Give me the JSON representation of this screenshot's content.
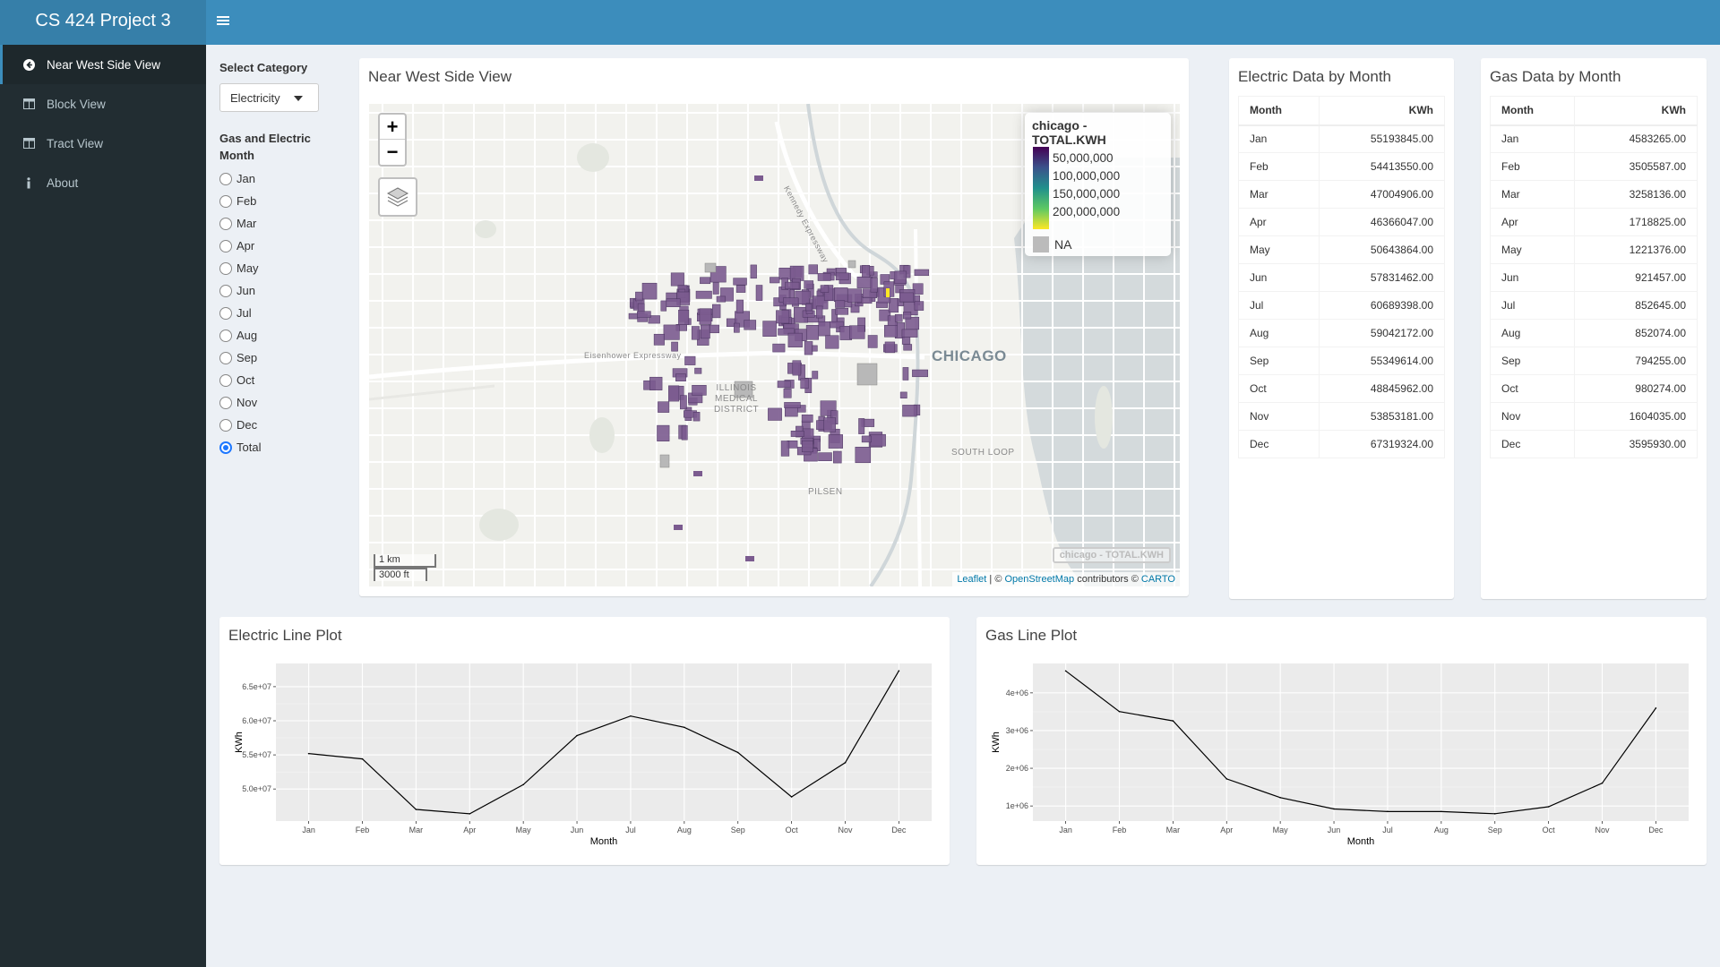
{
  "app": {
    "title": "CS 424 Project 3",
    "menu_icon": "hamburger-icon"
  },
  "sidebar": {
    "items": [
      {
        "label": "Near West Side View",
        "icon": "arrow-circle-left-icon",
        "active": true
      },
      {
        "label": "Block View",
        "icon": "table-icon",
        "active": false
      },
      {
        "label": "Tract View",
        "icon": "table-icon",
        "active": false
      },
      {
        "label": "About",
        "icon": "info-icon",
        "active": false
      }
    ]
  },
  "controls": {
    "category_label": "Select Category",
    "category_value": "Electricity",
    "month_label": "Gas and Electric Month",
    "months": [
      "Jan",
      "Feb",
      "Mar",
      "Apr",
      "May",
      "Jun",
      "Jul",
      "Aug",
      "Sep",
      "Oct",
      "Nov",
      "Dec",
      "Total"
    ],
    "selected_month": "Total"
  },
  "map_box": {
    "title": "Near West Side View",
    "zoom_in": "+",
    "zoom_out": "−",
    "legend": {
      "title": "chicago - TOTAL.KWH",
      "labels": [
        "50,000,000",
        "100,000,000",
        "150,000,000",
        "200,000,000"
      ],
      "na": "NA",
      "colors": [
        "#440154",
        "#3b528b",
        "#21908c",
        "#5dc863",
        "#fde725"
      ]
    },
    "layer_label": "chicago - TOTAL.KWH",
    "scale": {
      "km": "1 km",
      "ft": "3000 ft"
    },
    "attribution": {
      "leaflet": "Leaflet",
      "sep": " | © ",
      "osm": "OpenStreetMap",
      "contrib": " contributors © ",
      "carto": "CARTO"
    },
    "place_labels": {
      "chicago": "CHICAGO",
      "south_loop": "SOUTH LOOP",
      "pilsen": "PILSEN",
      "medical": "ILLINOIS MEDICAL DISTRICT",
      "eisenhower": "Eisenhower Expressway",
      "kennedy": "Kennedy Expressway"
    },
    "block_color": "#7b5b8f"
  },
  "electric_table": {
    "title": "Electric Data by Month",
    "headers": [
      "Month",
      "KWh"
    ],
    "rows": [
      [
        "Jan",
        "55193845.00"
      ],
      [
        "Feb",
        "54413550.00"
      ],
      [
        "Mar",
        "47004906.00"
      ],
      [
        "Apr",
        "46366047.00"
      ],
      [
        "May",
        "50643864.00"
      ],
      [
        "Jun",
        "57831462.00"
      ],
      [
        "Jul",
        "60689398.00"
      ],
      [
        "Aug",
        "59042172.00"
      ],
      [
        "Sep",
        "55349614.00"
      ],
      [
        "Oct",
        "48845962.00"
      ],
      [
        "Nov",
        "53853181.00"
      ],
      [
        "Dec",
        "67319324.00"
      ]
    ]
  },
  "gas_table": {
    "title": "Gas Data by Month",
    "headers": [
      "Month",
      "KWh"
    ],
    "rows": [
      [
        "Jan",
        "4583265.00"
      ],
      [
        "Feb",
        "3505587.00"
      ],
      [
        "Mar",
        "3258136.00"
      ],
      [
        "Apr",
        "1718825.00"
      ],
      [
        "May",
        "1221376.00"
      ],
      [
        "Jun",
        "921457.00"
      ],
      [
        "Jul",
        "852645.00"
      ],
      [
        "Aug",
        "852074.00"
      ],
      [
        "Sep",
        "794255.00"
      ],
      [
        "Oct",
        "980274.00"
      ],
      [
        "Nov",
        "1604035.00"
      ],
      [
        "Dec",
        "3595930.00"
      ]
    ]
  },
  "chart_data": [
    {
      "type": "line",
      "title": "Electric Line Plot",
      "xlabel": "Month",
      "ylabel": "KWh",
      "categories": [
        "Jan",
        "Feb",
        "Mar",
        "Apr",
        "May",
        "Jun",
        "Jul",
        "Aug",
        "Sep",
        "Oct",
        "Nov",
        "Dec"
      ],
      "values": [
        55193845,
        54413550,
        47004906,
        46366047,
        50643864,
        57831462,
        60689398,
        59042172,
        55349614,
        48845962,
        53853181,
        67319324
      ],
      "ylim": [
        45300000,
        68400000
      ],
      "yticks": [
        50000000,
        55000000,
        60000000,
        65000000
      ],
      "ytick_labels": [
        "5.0e+07",
        "5.5e+07",
        "6.0e+07",
        "6.5e+07"
      ],
      "grid": true
    },
    {
      "type": "line",
      "title": "Gas Line Plot",
      "xlabel": "Month",
      "ylabel": "KWh",
      "categories": [
        "Jan",
        "Feb",
        "Mar",
        "Apr",
        "May",
        "Jun",
        "Jul",
        "Aug",
        "Sep",
        "Oct",
        "Nov",
        "Dec"
      ],
      "values": [
        4583265,
        3505587,
        3258136,
        1718825,
        1221376,
        921457,
        852645,
        852074,
        794255,
        980274,
        1604035,
        3595930
      ],
      "ylim": [
        600000,
        4780000
      ],
      "yticks": [
        1000000,
        2000000,
        3000000,
        4000000
      ],
      "ytick_labels": [
        "1e+06",
        "2e+06",
        "3e+06",
        "4e+06"
      ],
      "grid": true
    }
  ]
}
